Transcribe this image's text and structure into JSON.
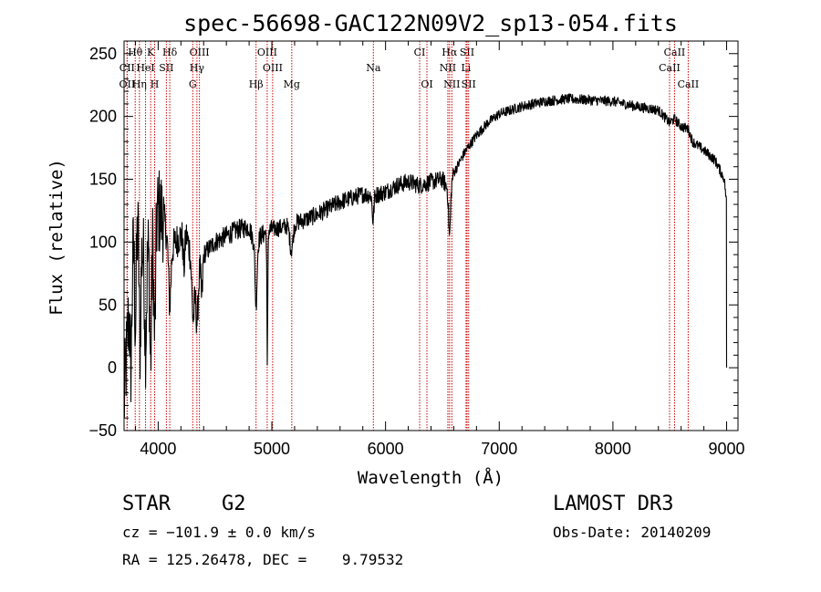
{
  "chart_data": {
    "type": "line",
    "title": "spec-56698-GAC122N09V2_sp13-054.fits",
    "xlabel": "Wavelength (Å)",
    "ylabel": "Flux (relative)",
    "xlim": [
      3700,
      9100
    ],
    "ylim": [
      -50,
      260
    ],
    "x_ticks": [
      4000,
      5000,
      6000,
      7000,
      8000,
      9000
    ],
    "y_ticks": [
      -50,
      0,
      50,
      100,
      150,
      200,
      250
    ],
    "x_minor_step": 200,
    "y_minor_step": 10,
    "grid": false,
    "line_color": "#000000",
    "marker_color": "#cc0000",
    "envelope": [
      [
        3700,
        -30
      ],
      [
        3750,
        60
      ],
      [
        3800,
        120
      ],
      [
        3850,
        95
      ],
      [
        3900,
        90
      ],
      [
        3950,
        120
      ],
      [
        4000,
        125
      ],
      [
        4050,
        120
      ],
      [
        4100,
        90
      ],
      [
        4150,
        100
      ],
      [
        4200,
        105
      ],
      [
        4250,
        105
      ],
      [
        4300,
        85
      ],
      [
        4350,
        75
      ],
      [
        4400,
        90
      ],
      [
        4500,
        100
      ],
      [
        4600,
        105
      ],
      [
        4700,
        110
      ],
      [
        4800,
        112
      ],
      [
        4860,
        95
      ],
      [
        4900,
        105
      ],
      [
        5000,
        110
      ],
      [
        5100,
        112
      ],
      [
        5200,
        115
      ],
      [
        5300,
        118
      ],
      [
        5400,
        122
      ],
      [
        5500,
        127
      ],
      [
        5600,
        132
      ],
      [
        5700,
        135
      ],
      [
        5800,
        138
      ],
      [
        5900,
        137
      ],
      [
        6000,
        140
      ],
      [
        6100,
        145
      ],
      [
        6200,
        148
      ],
      [
        6300,
        145
      ],
      [
        6400,
        148
      ],
      [
        6500,
        150
      ],
      [
        6563,
        140
      ],
      [
        6600,
        155
      ],
      [
        6700,
        172
      ],
      [
        6800,
        185
      ],
      [
        6900,
        195
      ],
      [
        7000,
        202
      ],
      [
        7200,
        208
      ],
      [
        7400,
        212
      ],
      [
        7600,
        214
      ],
      [
        7800,
        213
      ],
      [
        8000,
        212
      ],
      [
        8200,
        208
      ],
      [
        8400,
        205
      ],
      [
        8498,
        195
      ],
      [
        8542,
        198
      ],
      [
        8600,
        192
      ],
      [
        8662,
        190
      ],
      [
        8700,
        180
      ],
      [
        8800,
        173
      ],
      [
        8900,
        165
      ],
      [
        8980,
        150
      ],
      [
        9000,
        130
      ]
    ],
    "absorption_dips": [
      {
        "x": 3760,
        "depth": 70,
        "width": 12
      },
      {
        "x": 3800,
        "depth": 85,
        "width": 10
      },
      {
        "x": 3840,
        "depth": 80,
        "width": 10
      },
      {
        "x": 3889,
        "depth": 70,
        "width": 12
      },
      {
        "x": 3934,
        "depth": 105,
        "width": 12
      },
      {
        "x": 3969,
        "depth": 95,
        "width": 12
      },
      {
        "x": 4102,
        "depth": 40,
        "width": 14
      },
      {
        "x": 4227,
        "depth": 25,
        "width": 10
      },
      {
        "x": 4308,
        "depth": 45,
        "width": 16
      },
      {
        "x": 4341,
        "depth": 40,
        "width": 14
      },
      {
        "x": 4384,
        "depth": 30,
        "width": 10
      },
      {
        "x": 4861,
        "depth": 45,
        "width": 12
      },
      {
        "x": 4960,
        "depth": 110,
        "width": 5
      },
      {
        "x": 5172,
        "depth": 20,
        "width": 20
      },
      {
        "x": 5890,
        "depth": 20,
        "width": 10
      },
      {
        "x": 6563,
        "depth": 35,
        "width": 12
      }
    ],
    "noise": [
      {
        "x_max": 4050,
        "amplitude": 75
      },
      {
        "x_max": 4400,
        "amplitude": 28
      },
      {
        "x_max": 5000,
        "amplitude": 16
      },
      {
        "x_max": 6600,
        "amplitude": 14
      },
      {
        "x_max": 9100,
        "amplitude": 8
      }
    ],
    "line_markers": [
      {
        "name": "Hθ",
        "x": 3798,
        "row": 0
      },
      {
        "name": "K",
        "x": 3934,
        "row": 0
      },
      {
        "name": "Hδ",
        "x": 4102,
        "row": 0
      },
      {
        "name": "OIII",
        "x": 4363,
        "row": 0
      },
      {
        "name": "OIII",
        "x": 4959,
        "row": 0
      },
      {
        "name": "CI",
        "x": 6300,
        "row": 0
      },
      {
        "name": "Hα",
        "x": 6563,
        "row": 0
      },
      {
        "name": "SII",
        "x": 6717,
        "row": 0
      },
      {
        "name": "CaII",
        "x": 8542,
        "row": 0
      },
      {
        "name": "CII",
        "x": 3727,
        "row": 1
      },
      {
        "name": "HeI",
        "x": 3889,
        "row": 1
      },
      {
        "name": "SII",
        "x": 4072,
        "row": 1
      },
      {
        "name": "Hγ",
        "x": 4341,
        "row": 1
      },
      {
        "name": "OIII",
        "x": 5007,
        "row": 1
      },
      {
        "name": "Na",
        "x": 5893,
        "row": 1
      },
      {
        "name": "NII",
        "x": 6548,
        "row": 1
      },
      {
        "name": "Li",
        "x": 6708,
        "row": 1
      },
      {
        "name": "CaII",
        "x": 8498,
        "row": 1
      },
      {
        "name": "OII",
        "x": 3727,
        "row": 2
      },
      {
        "name": "Hη",
        "x": 3835,
        "row": 2
      },
      {
        "name": "H",
        "x": 3969,
        "row": 2
      },
      {
        "name": "G",
        "x": 4304,
        "row": 2
      },
      {
        "name": "Hβ",
        "x": 4861,
        "row": 2
      },
      {
        "name": "Mg",
        "x": 5175,
        "row": 2
      },
      {
        "name": "OI",
        "x": 6364,
        "row": 2
      },
      {
        "name": "NII",
        "x": 6583,
        "row": 2
      },
      {
        "name": "SII",
        "x": 6731,
        "row": 2
      },
      {
        "name": "CaII",
        "x": 8662,
        "row": 2
      }
    ]
  },
  "info": {
    "object_class": "STAR",
    "subclass": "G2",
    "survey": "LAMOST DR3",
    "redshift": "cz = −101.9 ± 0.0 km/s",
    "obs_date": "Obs-Date: 20140209",
    "coordinates": "RA = 125.26478, DEC =    9.79532"
  }
}
